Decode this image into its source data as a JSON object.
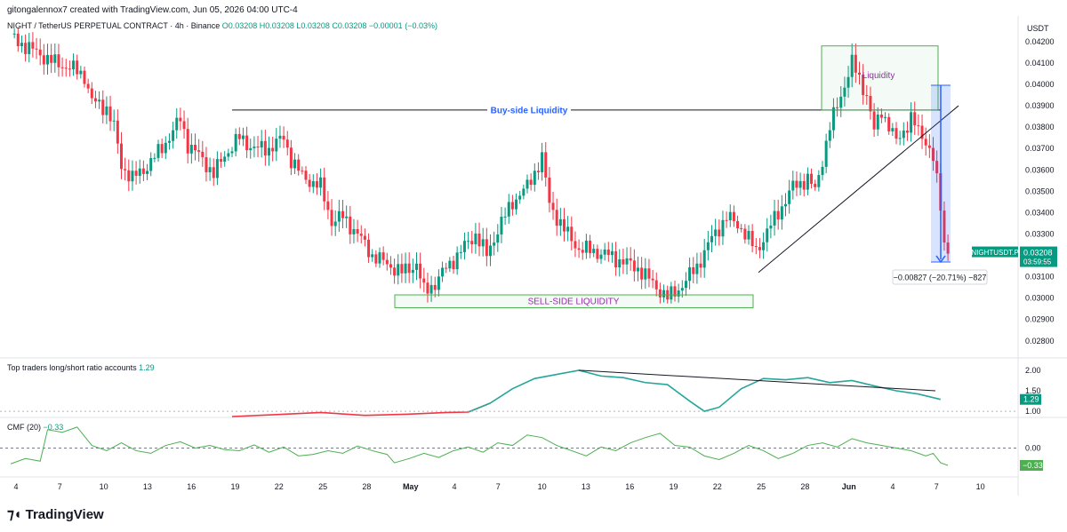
{
  "header": {
    "caption": "gitongalennox7 created with TradingView.com, Jun 05, 2026 04:00 UTC-4"
  },
  "legend": {
    "symbol": "NIGHT / TetherUS PERPETUAL CONTRACT · 4h · Binance",
    "ohlc": "O0.03208 H0.03208 L0.03208 C0.03208 −0.00001 (−0.03%)"
  },
  "currency": "USDT",
  "price_axis": [
    "0.04200",
    "0.04100",
    "0.04000",
    "0.03900",
    "0.03800",
    "0.03700",
    "0.03600",
    "0.03500",
    "0.03400",
    "0.03300",
    "0.03100",
    "0.03000",
    "0.02900",
    "0.02800"
  ],
  "price_axis_values": [
    0.042,
    0.041,
    0.04,
    0.039,
    0.038,
    0.037,
    0.036,
    0.035,
    0.034,
    0.033,
    0.031,
    0.03,
    0.029,
    0.028
  ],
  "last_price": {
    "label": "NIGHTUSDT.P",
    "value": "0.03208",
    "countdown": "03:59:55"
  },
  "annotations": {
    "buy_side": "Buy-side Liquidity",
    "sell_side": "SELL-SIDE LIQUIDITY",
    "liquidity": "Liquidity",
    "measure": "−0.00827 (−20.71%) −827"
  },
  "indicator1": {
    "name": "Top traders long/short ratio accounts",
    "value": "1.29",
    "axis": [
      "2.00",
      "1.50",
      "1.00"
    ],
    "axis_values": [
      2.0,
      1.5,
      1.0
    ],
    "badge": "1.29"
  },
  "indicator2": {
    "name": "CMF (20)",
    "value": "−0.33",
    "axis": [
      "0.00"
    ],
    "badge": "−0.33"
  },
  "time_axis": [
    "4",
    "7",
    "10",
    "13",
    "16",
    "19",
    "22",
    "25",
    "28",
    "May",
    "4",
    "7",
    "10",
    "13",
    "16",
    "19",
    "22",
    "25",
    "28",
    "Jun",
    "4",
    "7",
    "10"
  ],
  "brand": "TradingView",
  "colors": {
    "up": "#089981",
    "down": "#F23645",
    "line": "#26A69A",
    "ratio_red": "#F23645",
    "blue": "#2962FF",
    "box": "#4CAF50",
    "liq_label": "#9C27B0"
  },
  "chart_data": [
    {
      "type": "candlestick",
      "title": "NIGHT / TetherUS PERPETUAL CONTRACT · 4h · Binance",
      "ylim": [
        0.0272,
        0.0432
      ],
      "close_path": [
        [
          0,
          0.0422
        ],
        [
          4,
          0.0418
        ],
        [
          8,
          0.0414
        ],
        [
          12,
          0.041
        ],
        [
          16,
          0.0408
        ],
        [
          20,
          0.0404
        ],
        [
          22,
          0.0392
        ],
        [
          26,
          0.0389
        ],
        [
          28,
          0.038
        ],
        [
          30,
          0.0362
        ],
        [
          33,
          0.0356
        ],
        [
          36,
          0.036
        ],
        [
          40,
          0.0368
        ],
        [
          44,
          0.0378
        ],
        [
          46,
          0.0384
        ],
        [
          48,
          0.0372
        ],
        [
          52,
          0.0365
        ],
        [
          55,
          0.0358
        ],
        [
          58,
          0.0367
        ],
        [
          62,
          0.0375
        ],
        [
          66,
          0.037
        ],
        [
          70,
          0.037
        ],
        [
          74,
          0.0375
        ],
        [
          76,
          0.0365
        ],
        [
          79,
          0.0357
        ],
        [
          84,
          0.0352
        ],
        [
          87,
          0.0336
        ],
        [
          90,
          0.0338
        ],
        [
          94,
          0.033
        ],
        [
          98,
          0.032
        ],
        [
          102,
          0.0316
        ],
        [
          106,
          0.0312
        ],
        [
          110,
          0.0316
        ],
        [
          112,
          0.0303
        ],
        [
          115,
          0.0307
        ],
        [
          118,
          0.0314
        ],
        [
          122,
          0.0322
        ],
        [
          126,
          0.033
        ],
        [
          129,
          0.032
        ],
        [
          132,
          0.0332
        ],
        [
          136,
          0.0345
        ],
        [
          140,
          0.0352
        ],
        [
          144,
          0.0366
        ],
        [
          145,
          0.0355
        ],
        [
          146,
          0.0344
        ],
        [
          150,
          0.0332
        ],
        [
          154,
          0.0323
        ],
        [
          158,
          0.0322
        ],
        [
          162,
          0.032
        ],
        [
          166,
          0.0317
        ],
        [
          170,
          0.0314
        ],
        [
          174,
          0.0307
        ],
        [
          178,
          0.03
        ],
        [
          182,
          0.0306
        ],
        [
          186,
          0.0315
        ],
        [
          190,
          0.0328
        ],
        [
          194,
          0.0338
        ],
        [
          198,
          0.0333
        ],
        [
          202,
          0.0322
        ],
        [
          204,
          0.0328
        ],
        [
          208,
          0.034
        ],
        [
          212,
          0.0352
        ],
        [
          216,
          0.0356
        ],
        [
          218,
          0.035
        ],
        [
          222,
          0.038
        ],
        [
          224,
          0.039
        ],
        [
          228,
          0.041
        ],
        [
          232,
          0.0395
        ],
        [
          234,
          0.0378
        ],
        [
          236,
          0.0388
        ],
        [
          240,
          0.0373
        ],
        [
          244,
          0.0384
        ],
        [
          246,
          0.0378
        ],
        [
          248,
          0.0374
        ],
        [
          250,
          0.0365
        ],
        [
          252,
          0.0343
        ],
        [
          253,
          0.0326
        ],
        [
          254,
          0.03208
        ]
      ],
      "last_value": 0.03208
    },
    {
      "type": "line",
      "title": "Top traders long/short ratio accounts",
      "ylim": [
        0.85,
        2.15
      ],
      "points": [
        [
          60,
          0.83
        ],
        [
          72,
          0.92
        ],
        [
          84,
          0.97
        ],
        [
          96,
          0.9
        ],
        [
          108,
          0.93
        ],
        [
          118,
          0.97
        ],
        [
          124,
          0.98
        ],
        [
          130,
          1.2
        ],
        [
          136,
          1.55
        ],
        [
          142,
          1.8
        ],
        [
          148,
          1.9
        ],
        [
          154,
          2.0
        ],
        [
          160,
          1.86
        ],
        [
          166,
          1.82
        ],
        [
          172,
          1.7
        ],
        [
          178,
          1.65
        ],
        [
          184,
          1.25
        ],
        [
          188,
          1.0
        ],
        [
          192,
          1.1
        ],
        [
          198,
          1.55
        ],
        [
          204,
          1.8
        ],
        [
          210,
          1.77
        ],
        [
          216,
          1.82
        ],
        [
          222,
          1.7
        ],
        [
          228,
          1.75
        ],
        [
          234,
          1.62
        ],
        [
          240,
          1.5
        ],
        [
          246,
          1.42
        ],
        [
          252,
          1.29
        ]
      ],
      "last_value": 1.29
    },
    {
      "type": "line",
      "title": "CMF (20)",
      "ylim": [
        -0.55,
        0.55
      ],
      "points": [
        [
          0,
          -0.3
        ],
        [
          4,
          -0.2
        ],
        [
          8,
          -0.25
        ],
        [
          10,
          0.35
        ],
        [
          14,
          0.3
        ],
        [
          18,
          0.4
        ],
        [
          22,
          0.05
        ],
        [
          26,
          -0.05
        ],
        [
          30,
          0.1
        ],
        [
          34,
          -0.05
        ],
        [
          38,
          -0.1
        ],
        [
          42,
          0.05
        ],
        [
          46,
          0.12
        ],
        [
          50,
          0.0
        ],
        [
          54,
          0.05
        ],
        [
          58,
          -0.03
        ],
        [
          62,
          -0.05
        ],
        [
          66,
          0.06
        ],
        [
          70,
          -0.08
        ],
        [
          74,
          0.02
        ],
        [
          78,
          -0.15
        ],
        [
          82,
          -0.12
        ],
        [
          86,
          -0.05
        ],
        [
          90,
          -0.1
        ],
        [
          94,
          0.04
        ],
        [
          98,
          -0.05
        ],
        [
          102,
          -0.12
        ],
        [
          104,
          -0.28
        ],
        [
          108,
          -0.2
        ],
        [
          112,
          -0.1
        ],
        [
          116,
          -0.18
        ],
        [
          120,
          -0.05
        ],
        [
          124,
          0.02
        ],
        [
          128,
          -0.08
        ],
        [
          132,
          0.1
        ],
        [
          136,
          0.05
        ],
        [
          140,
          0.25
        ],
        [
          144,
          0.2
        ],
        [
          148,
          0.05
        ],
        [
          152,
          -0.05
        ],
        [
          156,
          -0.15
        ],
        [
          160,
          0.02
        ],
        [
          164,
          -0.05
        ],
        [
          168,
          0.1
        ],
        [
          172,
          0.2
        ],
        [
          176,
          0.28
        ],
        [
          180,
          0.05
        ],
        [
          184,
          0.02
        ],
        [
          188,
          -0.15
        ],
        [
          192,
          -0.22
        ],
        [
          196,
          -0.1
        ],
        [
          200,
          0.05
        ],
        [
          204,
          -0.05
        ],
        [
          208,
          -0.2
        ],
        [
          212,
          -0.1
        ],
        [
          216,
          0.05
        ],
        [
          220,
          0.1
        ],
        [
          224,
          0.02
        ],
        [
          228,
          0.18
        ],
        [
          232,
          0.1
        ],
        [
          236,
          0.05
        ],
        [
          240,
          0.0
        ],
        [
          244,
          -0.05
        ],
        [
          248,
          -0.15
        ],
        [
          250,
          -0.1
        ],
        [
          252,
          -0.28
        ],
        [
          254,
          -0.33
        ]
      ],
      "last_value": -0.33
    }
  ]
}
